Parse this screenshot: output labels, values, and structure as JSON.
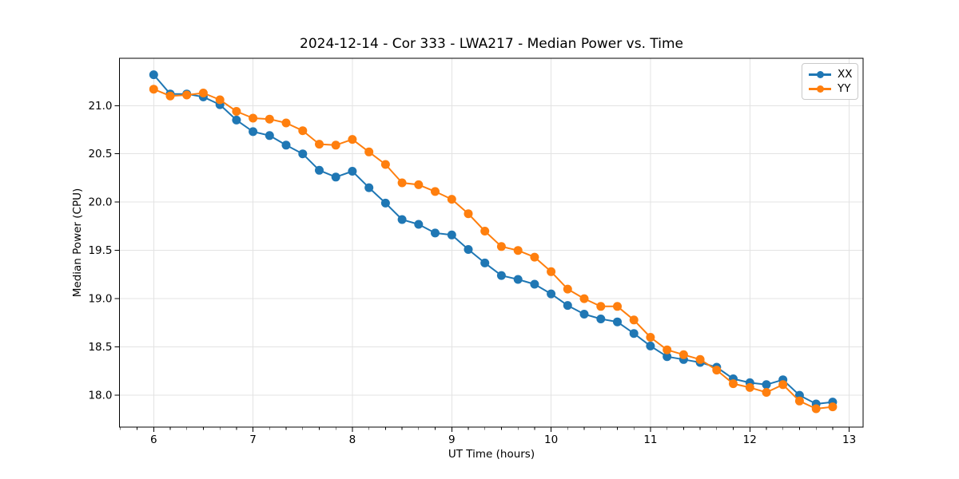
{
  "figure": {
    "background": "#ffffff"
  },
  "chart_data": {
    "type": "line",
    "title": "2024-12-14 - Cor 333 - LWA217 - Median Power vs. Time",
    "xlabel": "UT Time (hours)",
    "ylabel": "Median Power (CPU)",
    "xlim": [
      5.656,
      13.14
    ],
    "ylim": [
      17.67,
      21.49
    ],
    "grid": true,
    "grid_color": "#e3e3e3",
    "axis_color": "#000000",
    "text_color": "#000000",
    "legend_position": "upper right",
    "x_ticks": [
      6,
      7,
      8,
      9,
      10,
      11,
      12,
      13
    ],
    "x_minor_step": 0.166667,
    "y_ticks": [
      18.0,
      18.5,
      19.0,
      19.5,
      20.0,
      20.5,
      21.0
    ],
    "x": [
      6.0,
      6.1667,
      6.3333,
      6.5,
      6.6667,
      6.8333,
      7.0,
      7.1667,
      7.3333,
      7.5,
      7.6667,
      7.8333,
      8.0,
      8.1667,
      8.3333,
      8.5,
      8.6667,
      8.8333,
      9.0,
      9.1667,
      9.3333,
      9.5,
      9.6667,
      9.8333,
      10.0,
      10.1667,
      10.3333,
      10.5,
      10.6667,
      10.8333,
      11.0,
      11.1667,
      11.3333,
      11.5,
      11.6667,
      11.8333,
      12.0,
      12.1667,
      12.3333,
      12.5,
      12.6667,
      12.8333
    ],
    "series": [
      {
        "name": "XX",
        "color": "#1f77b4",
        "marker": "circle",
        "values": [
          21.32,
          21.12,
          21.12,
          21.09,
          21.01,
          20.85,
          20.73,
          20.69,
          20.59,
          20.5,
          20.33,
          20.26,
          20.32,
          20.15,
          19.99,
          19.82,
          19.77,
          19.68,
          19.66,
          19.51,
          19.37,
          19.24,
          19.2,
          19.15,
          19.05,
          18.93,
          18.84,
          18.79,
          18.76,
          18.64,
          18.51,
          18.4,
          18.37,
          18.34,
          18.29,
          18.17,
          18.13,
          18.11,
          18.16,
          18.0,
          17.91,
          17.93
        ]
      },
      {
        "name": "YY",
        "color": "#ff7f0e",
        "marker": "circle",
        "values": [
          21.17,
          21.1,
          21.11,
          21.13,
          21.06,
          20.94,
          20.87,
          20.86,
          20.82,
          20.74,
          20.6,
          20.59,
          20.65,
          20.52,
          20.39,
          20.2,
          20.18,
          20.11,
          20.03,
          19.88,
          19.7,
          19.54,
          19.5,
          19.43,
          19.28,
          19.1,
          19.0,
          18.92,
          18.92,
          18.78,
          18.6,
          18.47,
          18.42,
          18.37,
          18.26,
          18.12,
          18.08,
          18.03,
          18.11,
          17.94,
          17.86,
          17.88
        ]
      }
    ]
  }
}
